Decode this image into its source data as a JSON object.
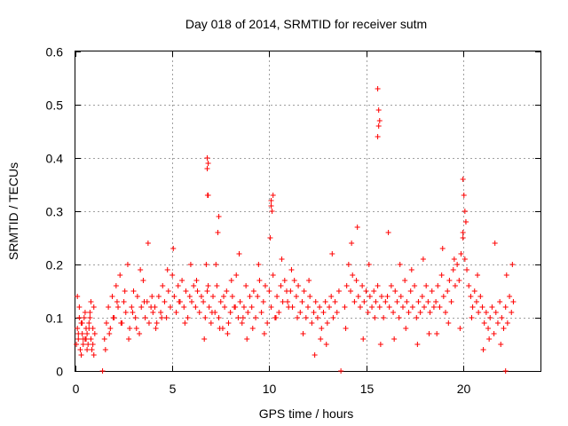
{
  "chart_data": {
    "type": "scatter",
    "title": "Day 018 of 2014, SRMTID for receiver sutm",
    "xlabel": "GPS time / hours",
    "ylabel": "SRMTID / TECUs",
    "xlim": [
      0,
      24
    ],
    "ylim": [
      0,
      0.6
    ],
    "xticks": [
      0,
      5,
      10,
      15,
      20
    ],
    "xtick_labels": [
      "0",
      "5",
      "10",
      "15",
      "20"
    ],
    "yticks": [
      0,
      0.1,
      0.2,
      0.3,
      0.4,
      0.5,
      0.6
    ],
    "ytick_labels": [
      "0",
      "0.1",
      "0.2",
      "0.3",
      "0.4",
      "0.5",
      "0.6"
    ],
    "grid": true,
    "marker": "+",
    "series": [
      {
        "name": "SRMTID",
        "color": "#ff0000",
        "x": [
          0.05,
          0.1,
          0.15,
          0.2,
          0.25,
          0.3,
          0.35,
          0.4,
          0.45,
          0.5,
          0.55,
          0.6,
          0.65,
          0.7,
          0.75,
          0.8,
          0.85,
          0.9,
          0.95,
          1.0,
          0.1,
          0.2,
          0.3,
          0.4,
          0.5,
          0.6,
          0.7,
          0.8,
          0.9,
          0.15,
          0.35,
          0.55,
          0.75,
          0.95,
          1.5,
          1.6,
          1.7,
          1.8,
          1.9,
          2.0,
          2.1,
          2.2,
          2.3,
          2.4,
          2.5,
          2.6,
          2.7,
          2.8,
          2.9,
          3.0,
          3.1,
          3.2,
          3.3,
          3.4,
          3.5,
          3.6,
          3.7,
          3.8,
          3.9,
          4.0,
          1.55,
          1.75,
          1.95,
          2.15,
          2.35,
          2.55,
          2.75,
          2.95,
          3.15,
          3.35,
          3.55,
          3.75,
          3.95,
          4.1,
          4.2,
          4.3,
          4.4,
          4.5,
          4.6,
          4.7,
          4.8,
          4.9,
          5.0,
          5.1,
          5.2,
          5.3,
          5.4,
          5.5,
          5.6,
          5.7,
          5.8,
          5.9,
          6.0,
          6.1,
          6.2,
          6.3,
          6.4,
          6.5,
          4.15,
          4.45,
          4.75,
          5.05,
          5.35,
          5.65,
          5.95,
          6.25,
          6.6,
          6.7,
          6.8,
          6.9,
          7.0,
          7.1,
          7.2,
          7.3,
          7.4,
          7.5,
          7.6,
          7.7,
          7.8,
          7.9,
          8.0,
          8.1,
          8.2,
          8.3,
          8.4,
          8.5,
          8.6,
          8.7,
          8.8,
          8.9,
          9.0,
          6.65,
          6.75,
          6.85,
          7.05,
          7.25,
          7.45,
          7.65,
          7.85,
          8.05,
          8.25,
          8.45,
          8.65,
          8.85,
          6.8,
          6.8,
          6.85,
          6.85,
          6.82,
          7.35,
          7.4,
          9.1,
          9.2,
          9.3,
          9.4,
          9.5,
          9.6,
          9.7,
          9.8,
          9.9,
          10.0,
          10.1,
          10.2,
          10.3,
          10.4,
          10.5,
          10.6,
          10.7,
          10.8,
          10.9,
          11.0,
          9.15,
          9.45,
          9.75,
          10.05,
          10.35,
          10.65,
          10.95,
          10.1,
          10.1,
          10.15,
          10.2,
          11.1,
          11.2,
          11.3,
          11.4,
          11.5,
          11.6,
          11.7,
          11.8,
          11.9,
          12.0,
          12.1,
          12.2,
          12.3,
          12.4,
          12.5,
          12.6,
          12.7,
          12.8,
          12.9,
          13.0,
          13.1,
          13.2,
          13.3,
          13.4,
          13.5,
          13.6,
          11.15,
          11.45,
          11.75,
          12.05,
          12.35,
          12.65,
          12.95,
          13.25,
          13.9,
          14.0,
          14.1,
          14.2,
          14.3,
          14.4,
          14.5,
          14.6,
          14.7,
          14.8,
          14.9,
          15.0,
          15.1,
          15.2,
          15.3,
          15.4,
          15.5,
          15.6,
          15.7,
          15.8,
          15.9,
          16.0,
          13.95,
          14.25,
          14.55,
          14.85,
          15.15,
          15.45,
          15.75,
          15.6,
          15.65,
          15.7,
          15.65,
          15.6,
          16.1,
          16.2,
          16.3,
          16.4,
          16.5,
          16.6,
          16.7,
          16.8,
          16.9,
          17.0,
          17.1,
          17.2,
          17.3,
          17.4,
          17.5,
          17.6,
          17.7,
          17.8,
          17.9,
          18.0,
          18.1,
          18.2,
          18.3,
          18.4,
          18.5,
          16.15,
          16.45,
          16.75,
          17.05,
          17.35,
          17.65,
          17.95,
          18.25,
          18.6,
          18.7,
          18.8,
          18.9,
          19.0,
          19.1,
          19.2,
          19.3,
          19.4,
          19.5,
          19.6,
          19.7,
          19.8,
          19.9,
          20.0,
          20.1,
          20.2,
          20.3,
          20.4,
          20.5,
          20.6,
          20.7,
          20.8,
          20.9,
          18.65,
          18.95,
          19.25,
          19.55,
          19.85,
          20.15,
          20.45,
          20.75,
          20.0,
          20.05,
          20.1,
          20.15,
          20.0,
          21.0,
          21.1,
          21.2,
          21.3,
          21.4,
          21.5,
          21.6,
          21.7,
          21.8,
          21.9,
          22.0,
          22.1,
          22.2,
          22.3,
          22.4,
          22.5,
          22.6,
          21.05,
          21.35,
          21.65,
          21.95,
          22.25,
          22.55,
          1.4,
          13.7,
          22.2
        ],
        "y": [
          0.05,
          0.08,
          0.06,
          0.12,
          0.04,
          0.09,
          0.07,
          0.05,
          0.1,
          0.06,
          0.08,
          0.07,
          0.05,
          0.09,
          0.11,
          0.06,
          0.04,
          0.08,
          0.12,
          0.07,
          0.14,
          0.1,
          0.03,
          0.06,
          0.11,
          0.04,
          0.08,
          0.13,
          0.05,
          0.07,
          0.09,
          0.06,
          0.1,
          0.03,
          0.06,
          0.09,
          0.12,
          0.08,
          0.14,
          0.1,
          0.16,
          0.12,
          0.18,
          0.09,
          0.13,
          0.11,
          0.2,
          0.08,
          0.12,
          0.15,
          0.1,
          0.14,
          0.07,
          0.12,
          0.17,
          0.1,
          0.13,
          0.09,
          0.12,
          0.11,
          0.04,
          0.07,
          0.1,
          0.13,
          0.09,
          0.15,
          0.06,
          0.11,
          0.08,
          0.19,
          0.13,
          0.24,
          0.14,
          0.12,
          0.09,
          0.14,
          0.11,
          0.16,
          0.13,
          0.1,
          0.15,
          0.12,
          0.18,
          0.14,
          0.11,
          0.16,
          0.13,
          0.17,
          0.12,
          0.15,
          0.1,
          0.14,
          0.13,
          0.16,
          0.12,
          0.15,
          0.11,
          0.14,
          0.08,
          0.1,
          0.19,
          0.23,
          0.13,
          0.09,
          0.2,
          0.17,
          0.13,
          0.1,
          0.15,
          0.12,
          0.09,
          0.14,
          0.11,
          0.16,
          0.1,
          0.13,
          0.08,
          0.12,
          0.15,
          0.09,
          0.11,
          0.14,
          0.12,
          0.18,
          0.1,
          0.13,
          0.09,
          0.12,
          0.16,
          0.11,
          0.14,
          0.06,
          0.2,
          0.16,
          0.11,
          0.2,
          0.08,
          0.14,
          0.07,
          0.17,
          0.12,
          0.22,
          0.1,
          0.06,
          0.4,
          0.38,
          0.33,
          0.39,
          0.33,
          0.26,
          0.29,
          0.12,
          0.15,
          0.1,
          0.14,
          0.17,
          0.11,
          0.13,
          0.16,
          0.09,
          0.15,
          0.12,
          0.18,
          0.1,
          0.14,
          0.11,
          0.16,
          0.13,
          0.17,
          0.15,
          0.12,
          0.08,
          0.2,
          0.07,
          0.25,
          0.1,
          0.21,
          0.13,
          0.32,
          0.31,
          0.3,
          0.33,
          0.15,
          0.12,
          0.17,
          0.14,
          0.16,
          0.11,
          0.13,
          0.15,
          0.1,
          0.12,
          0.14,
          0.09,
          0.11,
          0.13,
          0.1,
          0.12,
          0.08,
          0.11,
          0.13,
          0.09,
          0.12,
          0.14,
          0.1,
          0.13,
          0.11,
          0.15,
          0.19,
          0.1,
          0.07,
          0.17,
          0.03,
          0.06,
          0.05,
          0.22,
          0.12,
          0.16,
          0.2,
          0.15,
          0.18,
          0.13,
          0.17,
          0.14,
          0.12,
          0.16,
          0.13,
          0.15,
          0.11,
          0.14,
          0.12,
          0.15,
          0.13,
          0.16,
          0.12,
          0.14,
          0.1,
          0.13,
          0.08,
          0.24,
          0.27,
          0.06,
          0.2,
          0.1,
          0.05,
          0.53,
          0.49,
          0.47,
          0.46,
          0.44,
          0.14,
          0.12,
          0.16,
          0.11,
          0.15,
          0.13,
          0.1,
          0.14,
          0.12,
          0.17,
          0.13,
          0.11,
          0.15,
          0.12,
          0.16,
          0.1,
          0.13,
          0.11,
          0.14,
          0.12,
          0.16,
          0.13,
          0.11,
          0.15,
          0.12,
          0.26,
          0.06,
          0.2,
          0.08,
          0.19,
          0.05,
          0.21,
          0.07,
          0.13,
          0.16,
          0.12,
          0.18,
          0.14,
          0.11,
          0.15,
          0.17,
          0.13,
          0.19,
          0.16,
          0.2,
          0.17,
          0.22,
          0.25,
          0.21,
          0.19,
          0.16,
          0.14,
          0.12,
          0.15,
          0.13,
          0.11,
          0.14,
          0.07,
          0.23,
          0.09,
          0.21,
          0.08,
          0.28,
          0.1,
          0.18,
          0.36,
          0.33,
          0.3,
          0.28,
          0.26,
          0.12,
          0.09,
          0.11,
          0.08,
          0.1,
          0.12,
          0.07,
          0.11,
          0.09,
          0.13,
          0.1,
          0.08,
          0.12,
          0.09,
          0.14,
          0.11,
          0.13,
          0.04,
          0.06,
          0.24,
          0.05,
          0.18,
          0.2,
          0,
          0,
          0
        ]
      }
    ]
  }
}
